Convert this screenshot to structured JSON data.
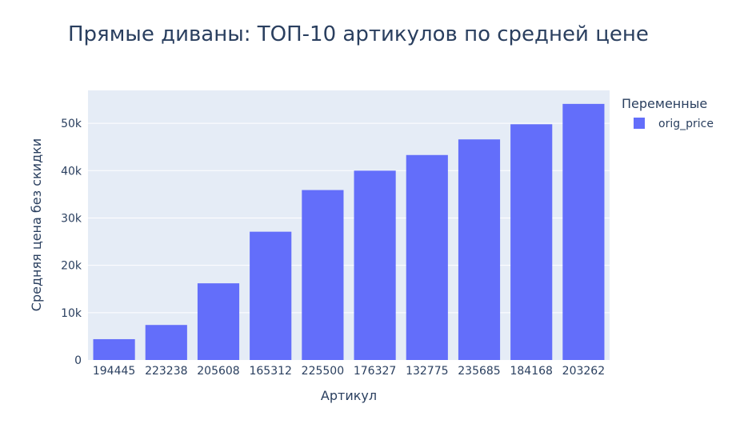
{
  "chart_data": {
    "type": "bar",
    "title": "Прямые диваны: ТОП-10 артикулов по средней цене",
    "xlabel": "Артикул",
    "ylabel": "Средняя цена без скидки",
    "categories": [
      "194445",
      "223238",
      "205608",
      "165312",
      "225500",
      "176327",
      "132775",
      "235685",
      "184168",
      "203262"
    ],
    "series": [
      {
        "name": "orig_price",
        "values": [
          4400,
          7400,
          16200,
          27100,
          35900,
          40000,
          43300,
          46600,
          49800,
          54100
        ],
        "color": "#636efa"
      }
    ],
    "ylim": [
      0,
      56950
    ],
    "yticks": [
      0,
      10000,
      20000,
      30000,
      40000,
      50000
    ],
    "ytick_labels": [
      "0",
      "10k",
      "20k",
      "30k",
      "40k",
      "50k"
    ],
    "grid": true,
    "legend": {
      "title": "Переменные",
      "placement": "top-right"
    },
    "colors": {
      "plot_background": "#e5ecf6",
      "gridline": "#ffffff",
      "text": "#2a3f5f"
    }
  }
}
